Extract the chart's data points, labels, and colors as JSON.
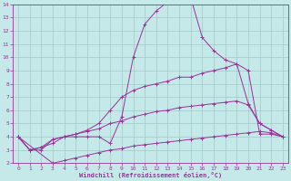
{
  "xlabel": "Windchill (Refroidissement éolien,°C)",
  "xlim": [
    -0.5,
    23.5
  ],
  "ylim": [
    2,
    14
  ],
  "xticks": [
    0,
    1,
    2,
    3,
    4,
    5,
    6,
    7,
    8,
    9,
    10,
    11,
    12,
    13,
    14,
    15,
    16,
    17,
    18,
    19,
    20,
    21,
    22,
    23
  ],
  "yticks": [
    2,
    3,
    4,
    5,
    6,
    7,
    8,
    9,
    10,
    11,
    12,
    13,
    14
  ],
  "bg_color": "#c5e8e8",
  "line_color": "#993399",
  "grid_color": "#a0c8c8",
  "lines": [
    {
      "x": [
        0,
        1,
        2,
        3,
        4,
        5,
        6,
        7,
        8,
        9,
        10,
        11,
        12,
        13,
        14,
        15,
        16,
        17,
        18,
        19,
        20,
        21,
        22,
        23
      ],
      "y": [
        4.0,
        3.0,
        3.0,
        3.8,
        4.0,
        4.0,
        4.0,
        4.0,
        3.5,
        5.5,
        10.0,
        12.5,
        13.5,
        14.2,
        14.5,
        14.5,
        11.5,
        10.5,
        9.8,
        9.5,
        9.0,
        4.2,
        4.2,
        4.0
      ]
    },
    {
      "x": [
        0,
        1,
        2,
        3,
        4,
        5,
        6,
        7,
        8,
        9,
        10,
        11,
        12,
        13,
        14,
        15,
        16,
        17,
        18,
        19,
        20,
        21,
        22,
        23
      ],
      "y": [
        4.0,
        3.0,
        3.2,
        3.8,
        4.0,
        4.2,
        4.5,
        5.0,
        6.0,
        7.0,
        7.5,
        7.8,
        8.0,
        8.2,
        8.5,
        8.5,
        8.8,
        9.0,
        9.2,
        9.5,
        6.5,
        5.0,
        4.5,
        4.0
      ]
    },
    {
      "x": [
        0,
        1,
        2,
        3,
        4,
        5,
        6,
        7,
        8,
        9,
        10,
        11,
        12,
        13,
        14,
        15,
        16,
        17,
        18,
        19,
        20,
        21,
        22,
        23
      ],
      "y": [
        4.0,
        3.0,
        3.2,
        3.5,
        4.0,
        4.2,
        4.4,
        4.6,
        5.0,
        5.2,
        5.5,
        5.7,
        5.9,
        6.0,
        6.2,
        6.3,
        6.4,
        6.5,
        6.6,
        6.7,
        6.4,
        5.0,
        4.5,
        4.0
      ]
    },
    {
      "x": [
        0,
        3,
        4,
        5,
        6,
        7,
        8,
        9,
        10,
        11,
        12,
        13,
        14,
        15,
        16,
        17,
        18,
        19,
        20,
        21,
        22,
        23
      ],
      "y": [
        4.0,
        2.0,
        2.2,
        2.4,
        2.6,
        2.8,
        3.0,
        3.1,
        3.3,
        3.4,
        3.5,
        3.6,
        3.7,
        3.8,
        3.9,
        4.0,
        4.1,
        4.2,
        4.3,
        4.4,
        4.3,
        4.0
      ]
    }
  ]
}
